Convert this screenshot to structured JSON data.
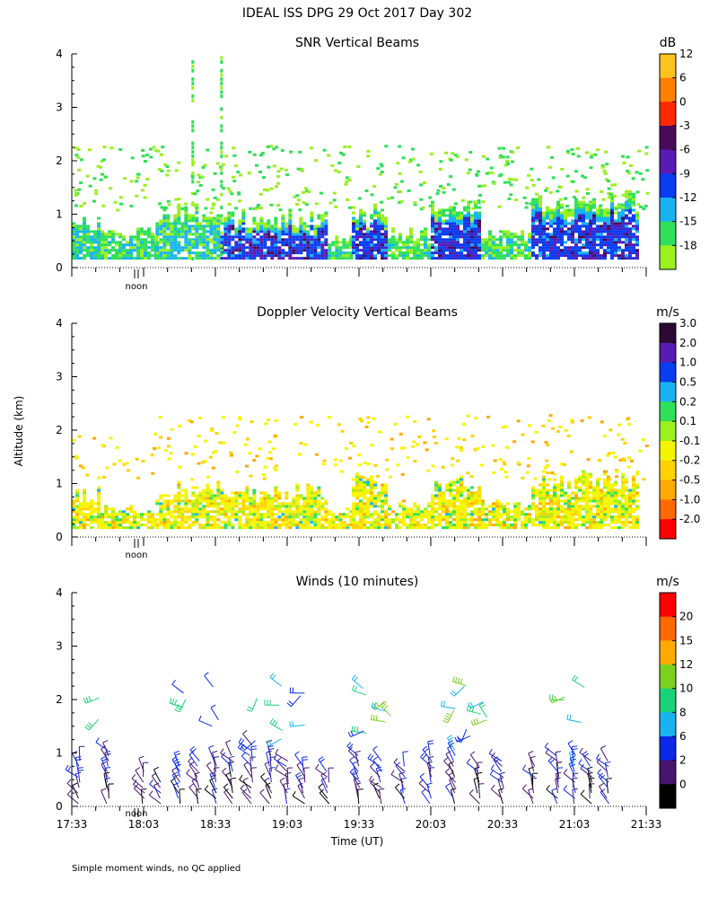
{
  "page": {
    "title": "IDEAL ISS DPG  29 Oct 2017 Day 302",
    "ylabel": "Altitude (km)",
    "xlabel": "Time (UT)",
    "noon_label": "noon",
    "footnote": "Simple moment winds, no QC applied"
  },
  "chart_data": [
    {
      "type": "heatmap",
      "title": "SNR Vertical Beams",
      "ylabel": "Altitude (km)",
      "ylim": [
        0,
        4
      ],
      "yticks": [
        "0",
        "1",
        "2",
        "3",
        "4"
      ],
      "colorbar": {
        "unit": "dB",
        "tick_labels": [
          "12",
          "6",
          "0",
          "-3",
          "-6",
          "-9",
          "-12",
          "-15",
          "-18"
        ],
        "colors": [
          "#fcc21e",
          "#ff7f00",
          "#ff2a00",
          "#4a0a5a",
          "#5a1ab4",
          "#0a3cf0",
          "#19b4f0",
          "#2fe05a",
          "#9bf01e"
        ]
      },
      "segments": [
        {
          "start": "17:33",
          "end": "17:45",
          "top_km": 0.8,
          "base": "#2fe05a",
          "intense": 0.45
        },
        {
          "start": "17:45",
          "end": "18:08",
          "top_km": 0.6,
          "base": "#9bf01e",
          "intense": 0.25
        },
        {
          "start": "18:08",
          "end": "18:35",
          "top_km": 1.0,
          "base": "#2fe05a",
          "intense": 0.5
        },
        {
          "start": "18:35",
          "end": "19:20",
          "top_km": 0.9,
          "base": "#0a3cf0",
          "intense": 0.95
        },
        {
          "start": "19:20",
          "end": "19:30",
          "top_km": 0.5,
          "base": "#9bf01e",
          "intense": 0.15
        },
        {
          "start": "19:30",
          "end": "19:45",
          "top_km": 1.0,
          "base": "#0a3cf0",
          "intense": 0.8
        },
        {
          "start": "19:45",
          "end": "20:03",
          "top_km": 0.6,
          "base": "#9bf01e",
          "intense": 0.2
        },
        {
          "start": "20:03",
          "end": "20:24",
          "top_km": 1.1,
          "base": "#0a3cf0",
          "intense": 0.95
        },
        {
          "start": "20:24",
          "end": "20:45",
          "top_km": 0.6,
          "base": "#9bf01e",
          "intense": 0.25
        },
        {
          "start": "20:45",
          "end": "21:30",
          "top_km": 1.2,
          "base": "#0a3cf0",
          "intense": 1.0
        }
      ]
    },
    {
      "type": "heatmap",
      "title": "Doppler Velocity Vertical Beams",
      "ylabel": "Altitude (km)",
      "ylim": [
        0,
        4
      ],
      "yticks": [
        "0",
        "1",
        "2",
        "3",
        "4"
      ],
      "colorbar": {
        "unit": "m/s",
        "tick_labels": [
          "3.0",
          "2.0",
          "1.0",
          "0.5",
          "0.2",
          "0.1",
          "-0.1",
          "-0.2",
          "-0.5",
          "-1.0",
          "-2.0"
        ],
        "colors": [
          "#280a32",
          "#5a1ab4",
          "#0a3cf0",
          "#19b4f0",
          "#2fe05a",
          "#9bf01e",
          "#f5f500",
          "#ffd200",
          "#ffaa00",
          "#ff6a00",
          "#ff0000"
        ]
      },
      "segments": [
        {
          "start": "17:33",
          "end": "17:45",
          "top_km": 0.8,
          "base": "#f5f500"
        },
        {
          "start": "17:45",
          "end": "18:08",
          "top_km": 0.5,
          "base": "#f5f500"
        },
        {
          "start": "18:08",
          "end": "18:35",
          "top_km": 0.9,
          "base": "#f5f500"
        },
        {
          "start": "18:35",
          "end": "19:20",
          "top_km": 0.85,
          "base": "#f5f500"
        },
        {
          "start": "19:20",
          "end": "19:30",
          "top_km": 0.5,
          "base": "#f5f500"
        },
        {
          "start": "19:30",
          "end": "19:45",
          "top_km": 1.0,
          "base": "#f5f500"
        },
        {
          "start": "19:45",
          "end": "20:03",
          "top_km": 0.6,
          "base": "#f5f500"
        },
        {
          "start": "20:03",
          "end": "20:24",
          "top_km": 1.0,
          "base": "#f5f500"
        },
        {
          "start": "20:24",
          "end": "20:45",
          "top_km": 0.6,
          "base": "#f5f500"
        },
        {
          "start": "20:45",
          "end": "21:30",
          "top_km": 1.1,
          "base": "#f5f500"
        }
      ]
    },
    {
      "type": "scatter",
      "title": "Winds (10 minutes)",
      "ylabel": "Altitude (km)",
      "xlabel": "Time (UT)",
      "ylim": [
        0,
        4
      ],
      "yticks": [
        "0",
        "1",
        "2",
        "3",
        "4"
      ],
      "xticks": [
        "17:33",
        "18:03",
        "18:33",
        "19:03",
        "19:33",
        "20:03",
        "20:33",
        "21:03",
        "21:33"
      ],
      "colorbar": {
        "unit": "m/s",
        "tick_labels": [
          "20",
          "15",
          "12",
          "10",
          "8",
          "6",
          "2",
          "0"
        ],
        "colors": [
          "#ff0000",
          "#ff6a00",
          "#ffaa00",
          "#7ad21e",
          "#19d278",
          "#19b4f0",
          "#0a28e6",
          "#46146e",
          "#000000"
        ]
      },
      "profiles": [
        {
          "time": "17:36",
          "top_km": 0.9
        },
        {
          "time": "17:48",
          "top_km": 1.1
        },
        {
          "time": "18:03",
          "top_km": 0.7
        },
        {
          "time": "18:10",
          "top_km": 0.5
        },
        {
          "time": "18:18",
          "top_km": 0.8
        },
        {
          "time": "18:26",
          "top_km": 0.9
        },
        {
          "time": "18:33",
          "top_km": 0.9
        },
        {
          "time": "18:40",
          "top_km": 1.0
        },
        {
          "time": "18:48",
          "top_km": 1.2
        },
        {
          "time": "18:56",
          "top_km": 1.0
        },
        {
          "time": "19:03",
          "top_km": 0.9
        },
        {
          "time": "19:10",
          "top_km": 0.8
        },
        {
          "time": "19:20",
          "top_km": 0.7
        },
        {
          "time": "19:33",
          "top_km": 1.0
        },
        {
          "time": "19:42",
          "top_km": 0.9
        },
        {
          "time": "19:52",
          "top_km": 0.8
        },
        {
          "time": "20:03",
          "top_km": 1.0
        },
        {
          "time": "20:13",
          "top_km": 1.1
        },
        {
          "time": "20:23",
          "top_km": 0.8
        },
        {
          "time": "20:33",
          "top_km": 0.9
        },
        {
          "time": "20:46",
          "top_km": 0.8
        },
        {
          "time": "20:56",
          "top_km": 1.0
        },
        {
          "time": "21:03",
          "top_km": 1.0
        },
        {
          "time": "21:10",
          "top_km": 0.9
        },
        {
          "time": "21:17",
          "top_km": 0.9
        }
      ],
      "upper_wind_times": [
        "17:45",
        "18:20",
        "18:33",
        "18:50",
        "19:00",
        "19:10",
        "19:35",
        "19:45",
        "20:12",
        "20:18",
        "20:25",
        "20:58",
        "21:06"
      ]
    }
  ]
}
